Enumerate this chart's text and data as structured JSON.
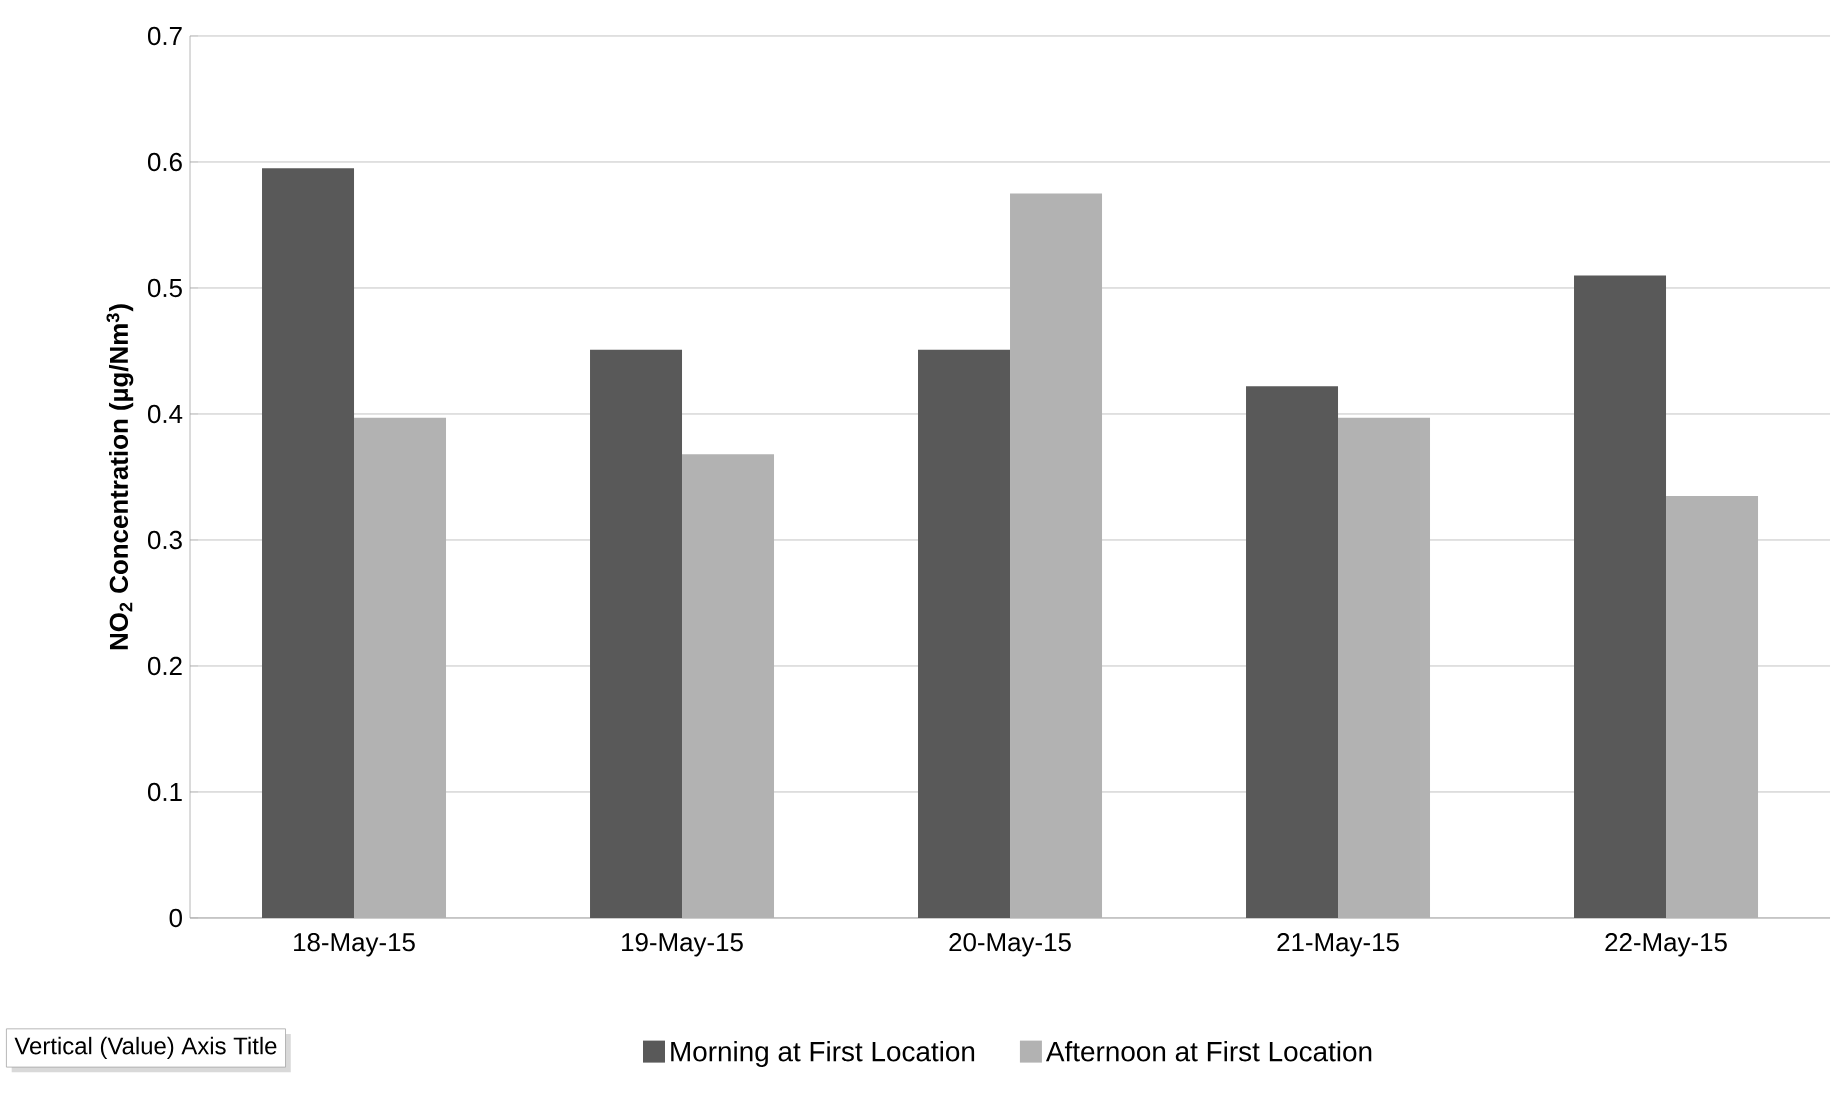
{
  "chart_data": {
    "type": "bar",
    "ylabel": "NO$_{2}$ Concentration (µg/Nm$^{3}$)",
    "categories": [
      "18-May-15",
      "19-May-15",
      "20-May-15",
      "21-May-15",
      "22-May-15"
    ],
    "series": [
      {
        "name": "Morning at First Location",
        "color": "#595959",
        "values": [
          0.595,
          0.451,
          0.451,
          0.422,
          0.51
        ]
      },
      {
        "name": "Afternoon at First Location",
        "color": "#b2b2b2",
        "values": [
          0.397,
          0.368,
          0.575,
          0.397,
          0.335
        ]
      }
    ],
    "ylim": [
      0,
      0.7
    ],
    "yticks": [
      {
        "value": 0,
        "label": "0"
      },
      0.1,
      0.2,
      0.3,
      0.4,
      0.5,
      0.6,
      0.7
    ],
    "grid": "y",
    "legend": "bottom",
    "annotations": [
      "Vertical (Value) Axis Title"
    ]
  }
}
